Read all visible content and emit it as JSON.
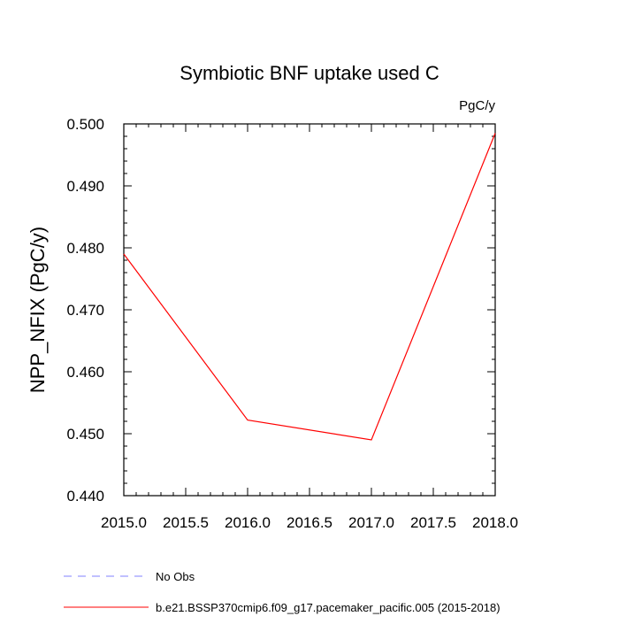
{
  "chart_data": {
    "type": "line",
    "title": "Symbiotic BNF uptake used C",
    "units_label": "PgC/y",
    "xlabel": "",
    "ylabel": "NPP_NFIX  (PgC/y)",
    "xlim": [
      2015.0,
      2018.0
    ],
    "ylim": [
      0.44,
      0.5
    ],
    "x_ticks": [
      2015.0,
      2015.5,
      2016.0,
      2016.5,
      2017.0,
      2017.5,
      2018.0
    ],
    "x_tick_labels": [
      "2015.0",
      "2015.5",
      "2016.0",
      "2016.5",
      "2017.0",
      "2017.5",
      "2018.0"
    ],
    "y_ticks": [
      0.44,
      0.45,
      0.46,
      0.47,
      0.48,
      0.49,
      0.5
    ],
    "y_tick_labels": [
      "0.440",
      "0.450",
      "0.460",
      "0.470",
      "0.480",
      "0.490",
      "0.500"
    ],
    "grid": false,
    "legend_position": "bottom",
    "series": [
      {
        "name": "b.e21.BSSP370cmip6.f09_g17.pacemaker_pacific.005 (2015-2018)",
        "color": "#ff0000",
        "style": "solid",
        "x": [
          2015.0,
          2016.0,
          2017.0,
          2018.0
        ],
        "y": [
          0.479,
          0.4522,
          0.449,
          0.4985
        ]
      }
    ],
    "legend": [
      {
        "label": "No Obs",
        "color": "#8080ff",
        "style": "dashed"
      },
      {
        "label": "b.e21.BSSP370cmip6.f09_g17.pacemaker_pacific.005 (2015-2018)",
        "color": "#ff0000",
        "style": "solid"
      }
    ]
  }
}
